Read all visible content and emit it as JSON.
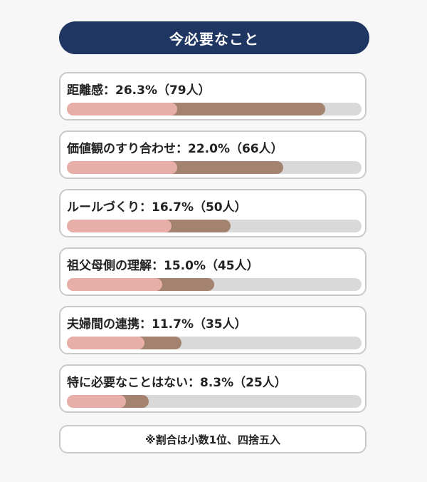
{
  "header": {
    "title": "今必要なこと"
  },
  "chart_data": {
    "type": "bar",
    "title": "今必要なこと",
    "unit": "%",
    "max_percent": 30,
    "colors": {
      "bar_light": "#e7afa7",
      "bar_dark": "#a3826f",
      "track": "#d9d9d9",
      "header_bg": "#1f3662"
    },
    "items": [
      {
        "label": "距離感：26.3%（79人）",
        "category": "距離感",
        "percent": 26.3,
        "count": 79
      },
      {
        "label": "価値観のすり合わせ：22.0%（66人）",
        "category": "価値観のすり合わせ",
        "percent": 22.0,
        "count": 66
      },
      {
        "label": "ルールづくり：16.7%（50人）",
        "category": "ルールづくり",
        "percent": 16.7,
        "count": 50
      },
      {
        "label": "祖父母側の理解：15.0%（45人）",
        "category": "祖父母側の理解",
        "percent": 15.0,
        "count": 45
      },
      {
        "label": "夫婦間の連携：11.7%（35人）",
        "category": "夫婦間の連携",
        "percent": 11.7,
        "count": 35
      },
      {
        "label": "特に必要なことはない：8.3%（25人）",
        "category": "特に必要なことはない",
        "percent": 8.3,
        "count": 25
      }
    ]
  },
  "footnote": {
    "text": "※割合は小数1位、四捨五入"
  }
}
